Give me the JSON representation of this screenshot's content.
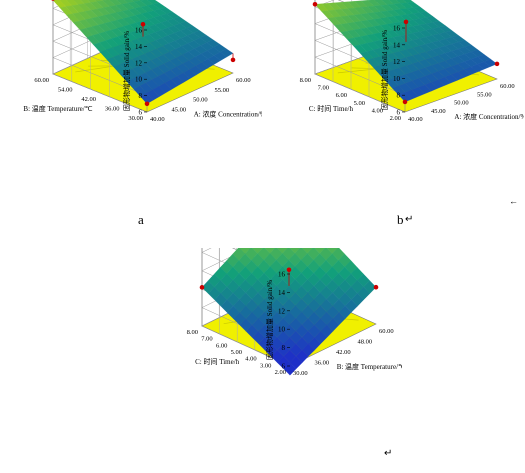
{
  "captions": {
    "a": "a",
    "b": "b",
    "trail_b": "↵",
    "trail_c": "↵",
    "edge_mark": "←"
  },
  "colors": {
    "floor": "#f0f000",
    "surface_low": "#1e2fc8",
    "surface_mid": "#12a07a",
    "surface_high": "#d8e000",
    "point": "#cc0000",
    "grid": "#555555"
  },
  "chart_data": [
    {
      "type": "surface",
      "panel": "a",
      "zlabel": "固形物增加量 Solid gain/%",
      "z_ticks": [
        "6",
        "8",
        "10",
        "12",
        "14",
        "16"
      ],
      "zlim": [
        6,
        16
      ],
      "x_axis": {
        "label": "A: 浓度 Concentration/%",
        "ticks": [
          "40.00",
          "45.00",
          "50.00",
          "55.00",
          "60.00"
        ],
        "range": [
          40,
          60
        ]
      },
      "y_axis": {
        "label": "B: 温度 Temperature/℃",
        "ticks": [
          "30.00",
          "36.00",
          "42.00",
          "54.00",
          "60.00"
        ],
        "range": [
          30,
          60
        ]
      },
      "corners_z": {
        "x_low_y_low": 7.0,
        "x_high_y_low": 8.4,
        "x_low_y_high": 15.0,
        "x_high_y_high": 11.6
      },
      "points": [
        {
          "x": 40,
          "y": 60,
          "z": 15.2
        },
        {
          "x": 50,
          "y": 45,
          "z": 12.0
        },
        {
          "x": 40,
          "y": 30,
          "z": 7.0
        },
        {
          "x": 60,
          "y": 30,
          "z": 7.6
        }
      ]
    },
    {
      "type": "surface",
      "panel": "b",
      "zlabel": "固形物增加量 Solid gain/%",
      "z_ticks": [
        "6",
        "8",
        "10",
        "12",
        "14",
        "16"
      ],
      "zlim": [
        6,
        16
      ],
      "x_axis": {
        "label": "A: 浓度 Concentration/%",
        "ticks": [
          "40.00",
          "45.00",
          "50.00",
          "55.00",
          "60.00"
        ],
        "range": [
          40,
          60
        ]
      },
      "y_axis": {
        "label": "C: 时间 Time/h",
        "ticks": [
          "2.00",
          "4.00",
          "5.00",
          "6.00",
          "7.00",
          "8.00"
        ],
        "range": [
          2,
          8
        ]
      },
      "corners_z": {
        "x_low_y_low": 7.2,
        "x_high_y_low": 7.8,
        "x_low_y_high": 14.3,
        "x_high_y_high": 11.2
      },
      "points": [
        {
          "x": 40,
          "y": 8,
          "z": 14.3
        },
        {
          "x": 50,
          "y": 5,
          "z": 12.5
        },
        {
          "x": 40,
          "y": 2,
          "z": 7.2
        },
        {
          "x": 60,
          "y": 2,
          "z": 7.8
        }
      ]
    },
    {
      "type": "surface",
      "panel": "c",
      "zlabel": "固形物增加量 Solid gain/%",
      "z_ticks": [
        "6",
        "8",
        "10",
        "12",
        "14",
        "16"
      ],
      "zlim": [
        6,
        16
      ],
      "x_axis": {
        "label": "B: 温度 Temperature/℃",
        "ticks": [
          "30.00",
          "36.00",
          "42.00",
          "48.00",
          "60.00"
        ],
        "range": [
          30,
          60
        ]
      },
      "y_axis": {
        "label": "C: 时间 Time/h",
        "ticks": [
          "2.00",
          "3.00",
          "4.00",
          "5.00",
          "6.00",
          "7.00",
          "8.00"
        ],
        "range": [
          2,
          8
        ]
      },
      "corners_z": {
        "x_low_y_low": 5.0,
        "x_high_y_low": 10.0,
        "x_low_y_high": 10.2,
        "x_high_y_high": 15.8
      },
      "points": [
        {
          "x": 60,
          "y": 8,
          "z": 15.8
        },
        {
          "x": 45,
          "y": 5,
          "z": 12.0
        },
        {
          "x": 30,
          "y": 8,
          "z": 10.2
        },
        {
          "x": 60,
          "y": 2,
          "z": 10.0
        }
      ]
    }
  ]
}
